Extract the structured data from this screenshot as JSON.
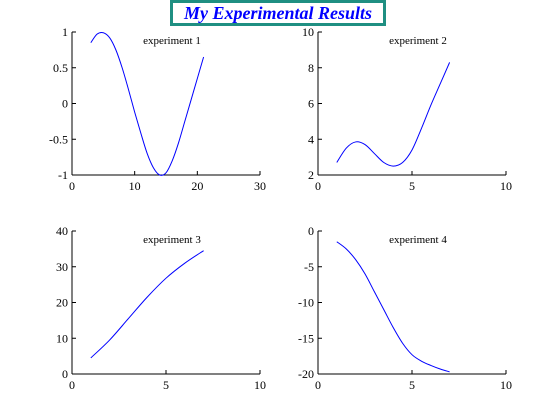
{
  "figure": {
    "title": "My Experimental Results",
    "title_color": "#0000ff",
    "title_border_color": "#1f8f82",
    "line_color": "#0000ff"
  },
  "chart_data": [
    {
      "type": "line",
      "title": "experiment 1",
      "xlabel": "",
      "ylabel": "",
      "xlim": [
        0,
        30
      ],
      "ylim": [
        -1,
        1
      ],
      "xticks": [
        "0",
        "10",
        "20",
        "30"
      ],
      "yticks": [
        "-1",
        "-0.5",
        "0",
        "0.5",
        "1"
      ],
      "grid": false,
      "series": [
        {
          "x": [
            3,
            4,
            5,
            6,
            7,
            8,
            9,
            10,
            11,
            12,
            13,
            14,
            15,
            16,
            17,
            18,
            19,
            20,
            21
          ],
          "y": [
            0.85,
            0.97,
            0.99,
            0.92,
            0.75,
            0.5,
            0.2,
            -0.12,
            -0.42,
            -0.7,
            -0.9,
            -1.0,
            -0.97,
            -0.8,
            -0.55,
            -0.25,
            0.05,
            0.35,
            0.65
          ]
        }
      ]
    },
    {
      "type": "line",
      "title": "experiment 2",
      "xlabel": "",
      "ylabel": "",
      "xlim": [
        0,
        10
      ],
      "ylim": [
        2,
        10
      ],
      "xticks": [
        "0",
        "5",
        "10"
      ],
      "yticks": [
        "2",
        "4",
        "6",
        "8",
        "10"
      ],
      "grid": false,
      "series": [
        {
          "x": [
            1,
            1.5,
            2,
            2.5,
            3,
            3.5,
            4,
            4.5,
            5,
            5.5,
            6,
            6.5,
            7
          ],
          "y": [
            2.7,
            3.5,
            3.85,
            3.7,
            3.2,
            2.7,
            2.5,
            2.7,
            3.4,
            4.6,
            5.9,
            7.1,
            8.3
          ]
        }
      ]
    },
    {
      "type": "line",
      "title": "experiment 3",
      "xlabel": "",
      "ylabel": "",
      "xlim": [
        0,
        10
      ],
      "ylim": [
        0,
        40
      ],
      "xticks": [
        "0",
        "5",
        "10"
      ],
      "yticks": [
        "0",
        "10",
        "20",
        "30",
        "40"
      ],
      "grid": false,
      "series": [
        {
          "x": [
            1,
            2,
            3,
            4,
            5,
            6,
            7
          ],
          "y": [
            4.5,
            9.5,
            15.5,
            21.5,
            26.8,
            31,
            34.5
          ]
        }
      ]
    },
    {
      "type": "line",
      "title": "experiment 4",
      "xlabel": "",
      "ylabel": "",
      "xlim": [
        0,
        10
      ],
      "ylim": [
        -20,
        0
      ],
      "xticks": [
        "0",
        "5",
        "10"
      ],
      "yticks": [
        "-20",
        "-15",
        "-10",
        "-5",
        "0"
      ],
      "grid": false,
      "series": [
        {
          "x": [
            1,
            1.5,
            2,
            2.5,
            3,
            3.5,
            4,
            4.5,
            5,
            5.5,
            6,
            6.5,
            7
          ],
          "y": [
            -1.5,
            -2.5,
            -4,
            -6,
            -8.5,
            -11,
            -13.5,
            -15.7,
            -17.3,
            -18.2,
            -18.8,
            -19.3,
            -19.7
          ]
        }
      ]
    }
  ]
}
